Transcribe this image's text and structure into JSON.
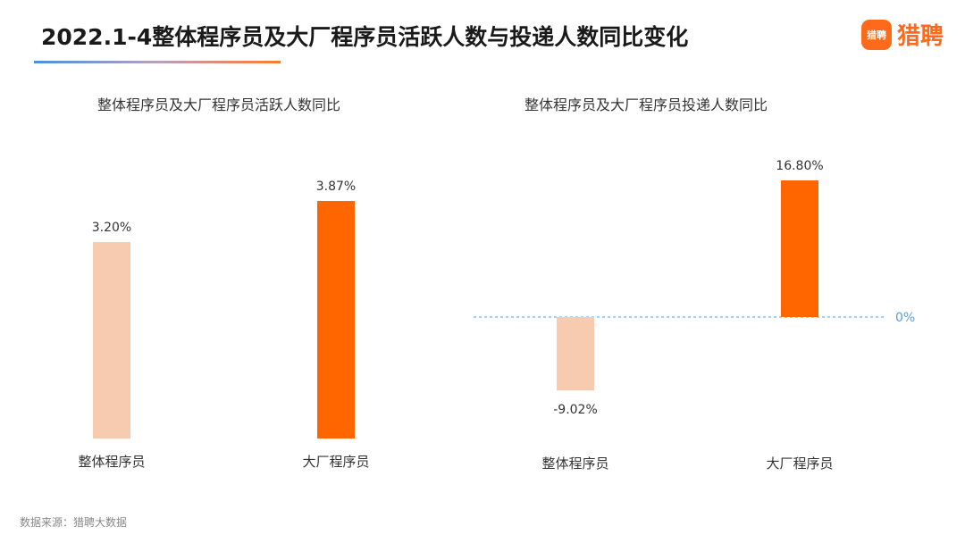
{
  "header": {
    "title": "2022.1-4整体程序员及大厂程序员活跃人数与投递人数同比变化",
    "brand_icon_text": "猎聘",
    "brand_name": "猎聘"
  },
  "footer": {
    "source": "数据来源：猎聘大数据"
  },
  "colors": {
    "light_bar": "#f7cbb0",
    "dark_bar": "#ff6600",
    "zero_line": "#5b9bd5",
    "brand": "#ff6a1a"
  },
  "chart_data": [
    {
      "type": "bar",
      "title": "整体程序员及大厂程序员活跃人数同比",
      "categories": [
        "整体程序员",
        "大厂程序员"
      ],
      "values": [
        3.2,
        3.87
      ],
      "value_labels": [
        "3.20%",
        "3.87%"
      ],
      "colors": [
        "#f7cbb0",
        "#ff6600"
      ],
      "ylim": [
        0,
        3.87
      ]
    },
    {
      "type": "bar",
      "title": "整体程序员及大厂程序员投递人数同比",
      "categories": [
        "整体程序员",
        "大厂程序员"
      ],
      "values": [
        -9.02,
        16.8
      ],
      "value_labels": [
        "-9.02%",
        "16.80%"
      ],
      "colors": [
        "#f7cbb0",
        "#ff6600"
      ],
      "zero_label": "0%",
      "ylim": [
        -9.02,
        16.8
      ]
    }
  ]
}
